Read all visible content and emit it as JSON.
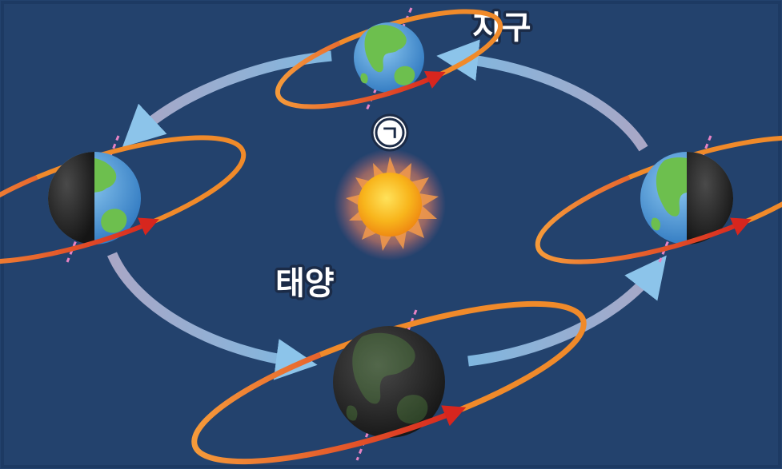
{
  "labels": {
    "earth": "지구",
    "sun": "태양",
    "marker": "ㄱ"
  },
  "colors": {
    "background": "#23426d",
    "border": "#1d3a63",
    "ocean": "#4f9ad8",
    "land": "#6dbf4e",
    "night": "#2c2c2c",
    "sun_core": "#f7a516",
    "rotation_ring": "#f08a2a",
    "rotation_arrow": "#d7261e",
    "orbit_arrow": "#7fb7e0",
    "axis": "#e783c4"
  },
  "earths": [
    {
      "name": "earth-top",
      "lit_side": "full"
    },
    {
      "name": "earth-left",
      "lit_side": "right"
    },
    {
      "name": "earth-bottom",
      "lit_side": "none"
    },
    {
      "name": "earth-right",
      "lit_side": "left"
    }
  ]
}
